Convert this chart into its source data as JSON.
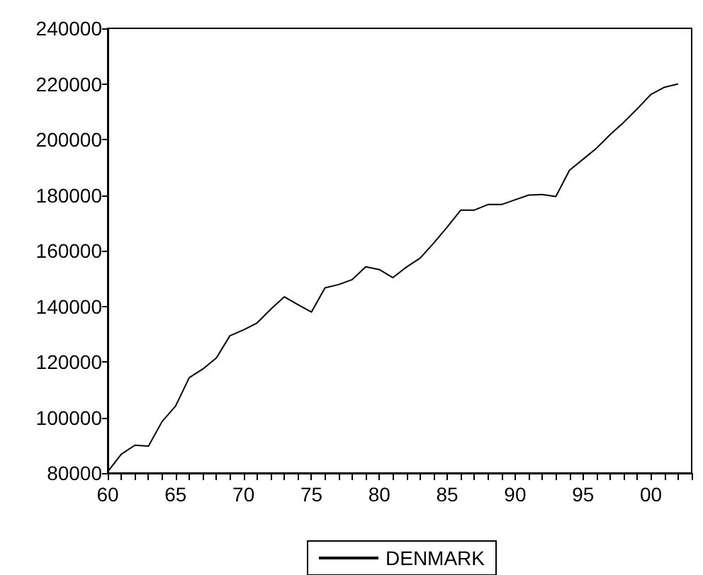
{
  "chart_data": {
    "type": "line",
    "x": [
      1960,
      1961,
      1962,
      1963,
      1964,
      1965,
      1966,
      1967,
      1968,
      1969,
      1970,
      1971,
      1972,
      1973,
      1974,
      1975,
      1976,
      1977,
      1978,
      1979,
      1980,
      1981,
      1982,
      1983,
      1984,
      1985,
      1986,
      1987,
      1988,
      1989,
      1990,
      1991,
      1992,
      1993,
      1994,
      1995,
      1996,
      1997,
      1998,
      1999,
      2000,
      2001,
      2002
    ],
    "series": [
      {
        "name": "DENMARK",
        "color": "#000000",
        "values": [
          80500,
          86800,
          90000,
          89700,
          98500,
          104100,
          114300,
          117400,
          121400,
          129400,
          131500,
          134000,
          138900,
          143400,
          140600,
          137900,
          146600,
          147800,
          149600,
          154200,
          153200,
          150300,
          154100,
          157300,
          162700,
          168500,
          174600,
          174600,
          176600,
          176600,
          178300,
          180000,
          180200,
          179500,
          188900,
          192900,
          196900,
          201800,
          206200,
          211100,
          216200,
          218800,
          220000
        ]
      }
    ],
    "xlim": [
      1960,
      2003
    ],
    "xticks": [
      {
        "value": 1960,
        "label": "60"
      },
      {
        "value": 1961,
        "label": null
      },
      {
        "value": 1962,
        "label": null
      },
      {
        "value": 1963,
        "label": null
      },
      {
        "value": 1964,
        "label": null
      },
      {
        "value": 1965,
        "label": "65"
      },
      {
        "value": 1966,
        "label": null
      },
      {
        "value": 1967,
        "label": null
      },
      {
        "value": 1968,
        "label": null
      },
      {
        "value": 1969,
        "label": null
      },
      {
        "value": 1970,
        "label": "70"
      },
      {
        "value": 1971,
        "label": null
      },
      {
        "value": 1972,
        "label": null
      },
      {
        "value": 1973,
        "label": null
      },
      {
        "value": 1974,
        "label": null
      },
      {
        "value": 1975,
        "label": "75"
      },
      {
        "value": 1976,
        "label": null
      },
      {
        "value": 1977,
        "label": null
      },
      {
        "value": 1978,
        "label": null
      },
      {
        "value": 1979,
        "label": null
      },
      {
        "value": 1980,
        "label": "80"
      },
      {
        "value": 1981,
        "label": null
      },
      {
        "value": 1982,
        "label": null
      },
      {
        "value": 1983,
        "label": null
      },
      {
        "value": 1984,
        "label": null
      },
      {
        "value": 1985,
        "label": "85"
      },
      {
        "value": 1986,
        "label": null
      },
      {
        "value": 1987,
        "label": null
      },
      {
        "value": 1988,
        "label": null
      },
      {
        "value": 1989,
        "label": null
      },
      {
        "value": 1990,
        "label": "90"
      },
      {
        "value": 1991,
        "label": null
      },
      {
        "value": 1992,
        "label": null
      },
      {
        "value": 1993,
        "label": null
      },
      {
        "value": 1994,
        "label": null
      },
      {
        "value": 1995,
        "label": "95"
      },
      {
        "value": 1996,
        "label": null
      },
      {
        "value": 1997,
        "label": null
      },
      {
        "value": 1998,
        "label": null
      },
      {
        "value": 1999,
        "label": null
      },
      {
        "value": 2000,
        "label": "00"
      },
      {
        "value": 2001,
        "label": null
      },
      {
        "value": 2002,
        "label": null
      },
      {
        "value": 2003,
        "label": null
      }
    ],
    "ylim": [
      80000,
      240000
    ],
    "yticks": [
      80000,
      100000,
      120000,
      140000,
      160000,
      180000,
      200000,
      220000,
      240000
    ],
    "grid": false,
    "legend": "bottom",
    "marker": "none",
    "line_style": "solid"
  }
}
